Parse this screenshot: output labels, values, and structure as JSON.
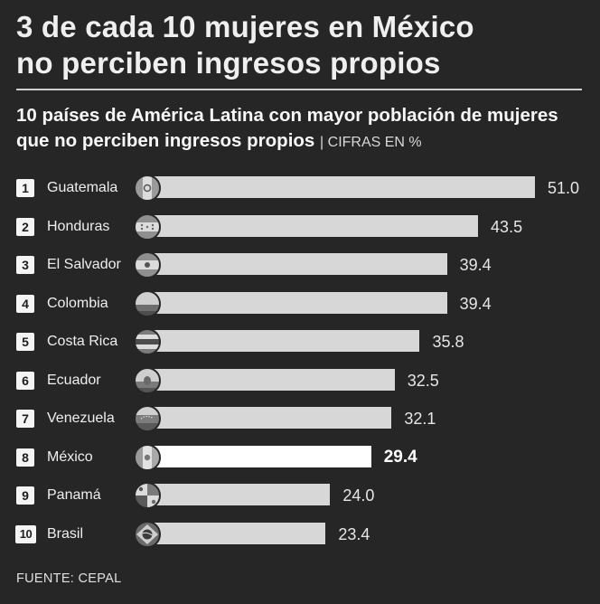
{
  "header": {
    "title_line1": "3 de cada 10 mujeres en México",
    "title_line2": "no perciben ingresos propios"
  },
  "chart_data": {
    "type": "bar",
    "orientation": "horizontal",
    "title": "10 países de América Latina con mayor población de mujeres que no perciben ingresos propios",
    "units_label": "| CIFRAS EN %",
    "categories": [
      "Guatemala",
      "Honduras",
      "El Salvador",
      "Colombia",
      "Costa Rica",
      "Ecuador",
      "Venezuela",
      "México",
      "Panamá",
      "Brasil"
    ],
    "ranks": [
      "1",
      "2",
      "3",
      "4",
      "5",
      "6",
      "7",
      "8",
      "9",
      "10"
    ],
    "values": [
      51.0,
      43.5,
      39.4,
      39.4,
      35.8,
      32.5,
      32.1,
      29.4,
      24.0,
      23.4
    ],
    "value_labels": [
      "51.0",
      "43.5",
      "39.4",
      "39.4",
      "35.8",
      "32.5",
      "32.1",
      "29.4",
      "24.0",
      "23.4"
    ],
    "highlight": "México",
    "xlim": [
      0,
      51.0
    ],
    "colors": {
      "bar": "#d7d7d7",
      "highlight": "#ffffff",
      "background": "#262626"
    }
  },
  "footer": {
    "source": "FUENTE: CEPAL"
  }
}
